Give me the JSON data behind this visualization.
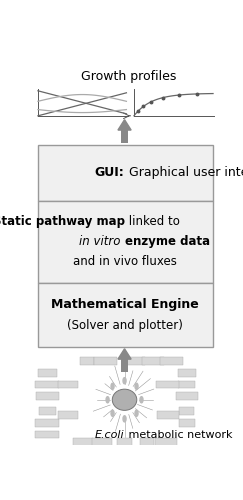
{
  "title": "Growth profiles",
  "bg_color": "#ffffff",
  "box_bg": "#f0f0f0",
  "box_border": "#999999",
  "arrow_color": "#888888",
  "gui_bold": "GUI:",
  "gui_normal": " Graphical user interface",
  "mid_line1_bold": "Static pathway map",
  "mid_line1_normal": " linked to",
  "mid_line2_normal": "in vitro ",
  "mid_line2_bold": "enzyme data",
  "mid_line3": "and in vivo fluxes",
  "bot_line1": "Mathematical Engine",
  "bot_line2": "(Solver and plotter)",
  "ecoli_italic": "E.coli",
  "ecoli_normal": " metabolic network",
  "fig_width": 2.43,
  "fig_height": 5.0,
  "dpi": 100
}
